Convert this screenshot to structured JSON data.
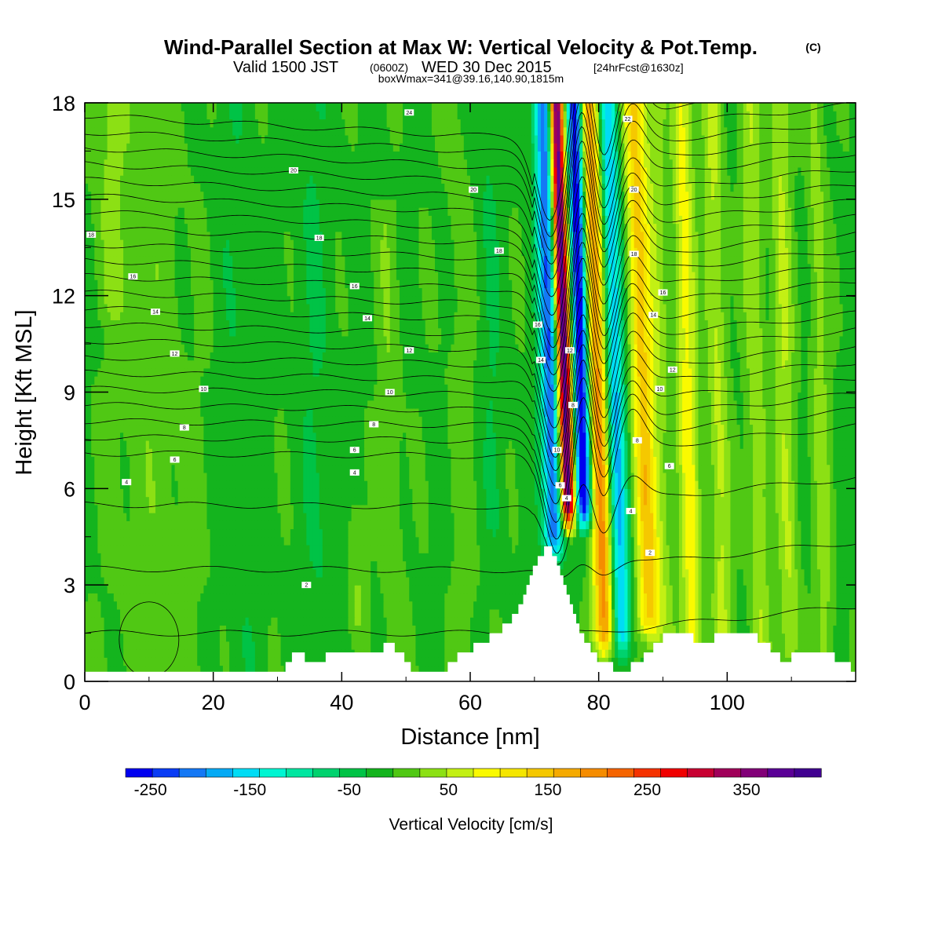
{
  "header": {
    "title": "Wind-Parallel Section at Max W: Vertical Velocity & Pot.Temp.",
    "copyright": "(C)",
    "valid_main": "Valid 1500 JST",
    "valid_utc": "(0600Z)",
    "valid_date": "WED 30 Dec 2015",
    "forecast": "[24hrFcst@1630z]",
    "boxline": "boxWmax=341@39.16,140.90,1815m"
  },
  "chart_data": {
    "type": "heatmap",
    "xlabel": "Distance [nm]",
    "ylabel": "Height [Kft MSL]",
    "xlim": [
      0,
      120
    ],
    "ylim": [
      0,
      18
    ],
    "xticks": [
      0,
      20,
      40,
      60,
      80,
      100
    ],
    "yticks": [
      0,
      3,
      6,
      9,
      12,
      15,
      18
    ],
    "colorbar": {
      "label": "Vertical Velocity [cm/s]",
      "range": [
        -275,
        425
      ],
      "step": 25,
      "ticks": [
        -250,
        -150,
        -50,
        50,
        150,
        250,
        350
      ],
      "tick_labels": [
        "-250",
        "-150",
        "-50",
        "50",
        "150",
        "250",
        "350"
      ],
      "colors": [
        "#0000f0",
        "#0a3cf5",
        "#1478f5",
        "#05aaf5",
        "#00dcf5",
        "#00f5d2",
        "#00e6a0",
        "#00d26e",
        "#00c346",
        "#14b41e",
        "#50c814",
        "#8ce014",
        "#c3f014",
        "#fafa00",
        "#f5e600",
        "#f5c800",
        "#f5aa00",
        "#f58c00",
        "#f56400",
        "#f53200",
        "#f00000",
        "#c80032",
        "#a0005a",
        "#820078",
        "#5a0096",
        "#400090"
      ]
    },
    "terrain": {
      "description_values_kft": [
        [
          0,
          0.3
        ],
        [
          31,
          0.3
        ],
        [
          31.5,
          0.6
        ],
        [
          33,
          0.9
        ],
        [
          35,
          0.6
        ],
        [
          40,
          0.9
        ],
        [
          46,
          0.9
        ],
        [
          47,
          1.2
        ],
        [
          49,
          0.9
        ],
        [
          50,
          0.6
        ],
        [
          51,
          0.3
        ],
        [
          56,
          0.3
        ],
        [
          57,
          0.6
        ],
        [
          59,
          0.9
        ],
        [
          62,
          1.2
        ],
        [
          64,
          1.5
        ],
        [
          66,
          1.8
        ],
        [
          68,
          2.4
        ],
        [
          69,
          3.0
        ],
        [
          70,
          3.6
        ],
        [
          71,
          3.9
        ],
        [
          72,
          4.2
        ],
        [
          73,
          3.9
        ],
        [
          74,
          3.3
        ],
        [
          75,
          2.7
        ],
        [
          76,
          2.1
        ],
        [
          77,
          1.5
        ],
        [
          79,
          0.9
        ],
        [
          80,
          0.6
        ],
        [
          84,
          0.3
        ],
        [
          86,
          0.6
        ],
        [
          88,
          0.9
        ],
        [
          89,
          1.2
        ],
        [
          91,
          1.5
        ],
        [
          94,
          1.5
        ],
        [
          95,
          1.2
        ],
        [
          97,
          1.2
        ],
        [
          99,
          1.5
        ],
        [
          103,
          1.5
        ],
        [
          106,
          1.2
        ],
        [
          107,
          0.9
        ],
        [
          109,
          0.6
        ],
        [
          111,
          0.9
        ],
        [
          115,
          0.9
        ],
        [
          118,
          0.6
        ],
        [
          120,
          0.3
        ]
      ]
    },
    "field": {
      "description": "Vertical velocity (cm/s) as a sum of features; x in nm, z in kft",
      "background": -30,
      "features": [
        {
          "x": 74.7,
          "w": 0.8,
          "v": 400,
          "z0": 5.5,
          "z1": 18,
          "tilt": 0.15
        },
        {
          "x": 72.5,
          "w": 1.1,
          "v": -200,
          "z0": 4.5,
          "z1": 18,
          "tilt": 0.12
        },
        {
          "x": 77.3,
          "w": 0.9,
          "v": -260,
          "z0": 5.5,
          "z1": 18,
          "tilt": 0.12
        },
        {
          "x": 79.8,
          "w": 1.1,
          "v": 190,
          "z0": 1.5,
          "z1": 18,
          "tilt": 0.15
        },
        {
          "x": 82.6,
          "w": 1.0,
          "v": -150,
          "z0": 1.5,
          "z1": 18,
          "tilt": 0.13
        },
        {
          "x": 86.8,
          "w": 1.2,
          "v": 140,
          "z0": 2.0,
          "z1": 18,
          "tilt": 0.15
        },
        {
          "x": 89.5,
          "w": 1.2,
          "v": 40,
          "z0": 1.0,
          "z1": 18,
          "tilt": 0.1
        },
        {
          "x": 93.8,
          "w": 1.1,
          "v": 90,
          "z0": 1.0,
          "z1": 18,
          "tilt": 0.1
        },
        {
          "x": 98.5,
          "w": 1.1,
          "v": 60,
          "z0": 1.0,
          "z1": 18,
          "tilt": 0.1
        },
        {
          "x": 104.5,
          "w": 1.1,
          "v": 50,
          "z0": 1.0,
          "z1": 18,
          "tilt": 0.1
        },
        {
          "x": 109,
          "w": 1.1,
          "v": 55,
          "z0": 1.0,
          "z1": 18,
          "tilt": 0.1
        },
        {
          "x": 114.5,
          "w": 1.0,
          "v": 40,
          "z0": 1.0,
          "z1": 18,
          "tilt": 0.1
        },
        {
          "x": 47.5,
          "w": 1.2,
          "v": 25,
          "z0": 1.0,
          "z1": 14,
          "tilt": 0.1
        },
        {
          "x": 42.5,
          "w": 1.0,
          "v": 30,
          "z0": 2.0,
          "z1": 4.5,
          "tilt": 0
        },
        {
          "x": 58.5,
          "w": 1.5,
          "v": 15,
          "z0": 1.0,
          "z1": 18,
          "tilt": 0.1
        },
        {
          "x": 63.5,
          "w": 1.3,
          "v": -20,
          "z0": 5.0,
          "z1": 18,
          "tilt": 0.1
        },
        {
          "x": 10.0,
          "w": 5.0,
          "v": 20,
          "z0": 0.3,
          "z1": 18,
          "tilt": 0.2
        },
        {
          "x": 4.0,
          "w": 1.5,
          "v": 25,
          "z0": 12.0,
          "z1": 18,
          "tilt": 0
        },
        {
          "x": 24.0,
          "w": 2.0,
          "v": -15,
          "z0": 0.3,
          "z1": 18,
          "tilt": 0.1
        },
        {
          "x": 36.0,
          "w": 2.0,
          "v": -20,
          "z0": 0.3,
          "z1": 18,
          "tilt": 0.1
        }
      ]
    },
    "contours": {
      "field": "Pot.Temp.",
      "levels": [
        0,
        1,
        2,
        3,
        4,
        5,
        6,
        7,
        8,
        9,
        10,
        11,
        12,
        13,
        14,
        15,
        16,
        17,
        18,
        19,
        20,
        21,
        22,
        23,
        24
      ],
      "labels": [
        {
          "text": "24",
          "x": 50.5,
          "z": 17.7
        },
        {
          "text": "22",
          "x": 84.5,
          "z": 17.5
        },
        {
          "text": "20",
          "x": 32.5,
          "z": 15.9
        },
        {
          "text": "20",
          "x": 60.5,
          "z": 15.3
        },
        {
          "text": "20",
          "x": 85.5,
          "z": 15.3
        },
        {
          "text": "18",
          "x": 1.0,
          "z": 13.9
        },
        {
          "text": "18",
          "x": 36.5,
          "z": 13.8
        },
        {
          "text": "18",
          "x": 64.5,
          "z": 13.4
        },
        {
          "text": "18",
          "x": 85.5,
          "z": 13.3
        },
        {
          "text": "16",
          "x": 7.5,
          "z": 12.6
        },
        {
          "text": "16",
          "x": 42.0,
          "z": 12.3
        },
        {
          "text": "16",
          "x": 90.0,
          "z": 12.1
        },
        {
          "text": "14",
          "x": 11.0,
          "z": 11.5
        },
        {
          "text": "14",
          "x": 44.0,
          "z": 11.3
        },
        {
          "text": "14",
          "x": 88.5,
          "z": 11.4
        },
        {
          "text": "12",
          "x": 14.0,
          "z": 10.2
        },
        {
          "text": "12",
          "x": 50.5,
          "z": 10.3
        },
        {
          "text": "12",
          "x": 91.5,
          "z": 9.7
        },
        {
          "text": "10",
          "x": 18.5,
          "z": 9.1
        },
        {
          "text": "10",
          "x": 47.5,
          "z": 9.0
        },
        {
          "text": "10",
          "x": 89.5,
          "z": 9.1
        },
        {
          "text": "8",
          "x": 15.5,
          "z": 7.9
        },
        {
          "text": "8",
          "x": 45.0,
          "z": 8.0
        },
        {
          "text": "8",
          "x": 86.0,
          "z": 7.5
        },
        {
          "text": "6",
          "x": 14.0,
          "z": 6.9
        },
        {
          "text": "6",
          "x": 42.0,
          "z": 7.2
        },
        {
          "text": "6",
          "x": 91.0,
          "z": 6.7
        },
        {
          "text": "4",
          "x": 6.5,
          "z": 6.2
        },
        {
          "text": "4",
          "x": 42.0,
          "z": 6.5
        },
        {
          "text": "4",
          "x": 85.0,
          "z": 5.3
        },
        {
          "text": "2",
          "x": 88.0,
          "z": 4.0
        },
        {
          "text": "2",
          "x": 34.5,
          "z": 3.0
        },
        {
          "text": "16",
          "x": 70.5,
          "z": 11.1
        },
        {
          "text": "14",
          "x": 71.0,
          "z": 10.0
        },
        {
          "text": "12",
          "x": 75.5,
          "z": 10.3
        },
        {
          "text": "8",
          "x": 76.0,
          "z": 8.6
        },
        {
          "text": "10",
          "x": 73.5,
          "z": 7.2
        },
        {
          "text": "6",
          "x": 74.0,
          "z": 6.1
        },
        {
          "text": "4",
          "x": 75.0,
          "z": 5.7
        }
      ]
    }
  }
}
